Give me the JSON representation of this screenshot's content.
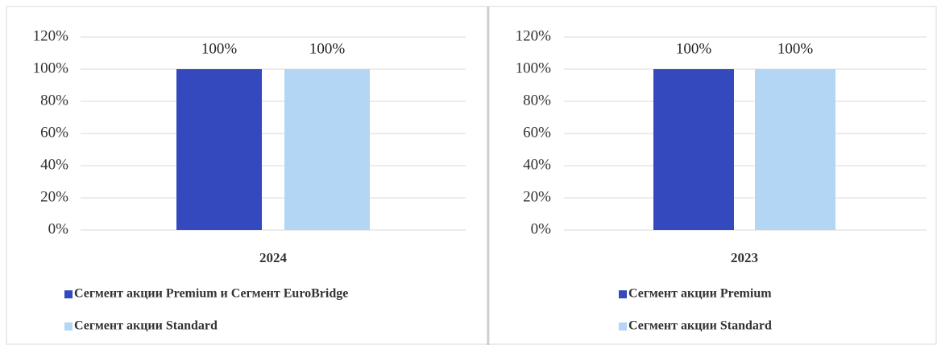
{
  "chart_data": [
    {
      "type": "bar",
      "categories": [
        "2024"
      ],
      "series": [
        {
          "name": "Сегмент акции Premium и Сегмент EuroBridge",
          "color": "#3349bd",
          "values": [
            100
          ],
          "value_labels": [
            "100%"
          ]
        },
        {
          "name": "Сегмент акции Standard",
          "color": "#b4d6f5",
          "values": [
            100
          ],
          "value_labels": [
            "100%"
          ]
        }
      ],
      "ylim": [
        0,
        120
      ],
      "yticks": [
        {
          "value": 0,
          "label": "0%"
        },
        {
          "value": 20,
          "label": "20%"
        },
        {
          "value": 40,
          "label": "40%"
        },
        {
          "value": 60,
          "label": "60%"
        },
        {
          "value": 80,
          "label": "80%"
        },
        {
          "value": 100,
          "label": "100%"
        },
        {
          "value": 120,
          "label": "120%"
        }
      ],
      "grid": true,
      "legend": "bottom"
    },
    {
      "type": "bar",
      "categories": [
        "2023"
      ],
      "series": [
        {
          "name": "Сегмент акции Premium",
          "color": "#3349bd",
          "values": [
            100
          ],
          "value_labels": [
            "100%"
          ]
        },
        {
          "name": "Сегмент акции Standard",
          "color": "#b4d6f5",
          "values": [
            100
          ],
          "value_labels": [
            "100%"
          ]
        }
      ],
      "ylim": [
        0,
        120
      ],
      "yticks": [
        {
          "value": 0,
          "label": "0%"
        },
        {
          "value": 20,
          "label": "20%"
        },
        {
          "value": 40,
          "label": "40%"
        },
        {
          "value": 60,
          "label": "60%"
        },
        {
          "value": 80,
          "label": "80%"
        },
        {
          "value": 100,
          "label": "100%"
        },
        {
          "value": 120,
          "label": "120%"
        }
      ],
      "grid": true,
      "legend": "bottom"
    }
  ]
}
